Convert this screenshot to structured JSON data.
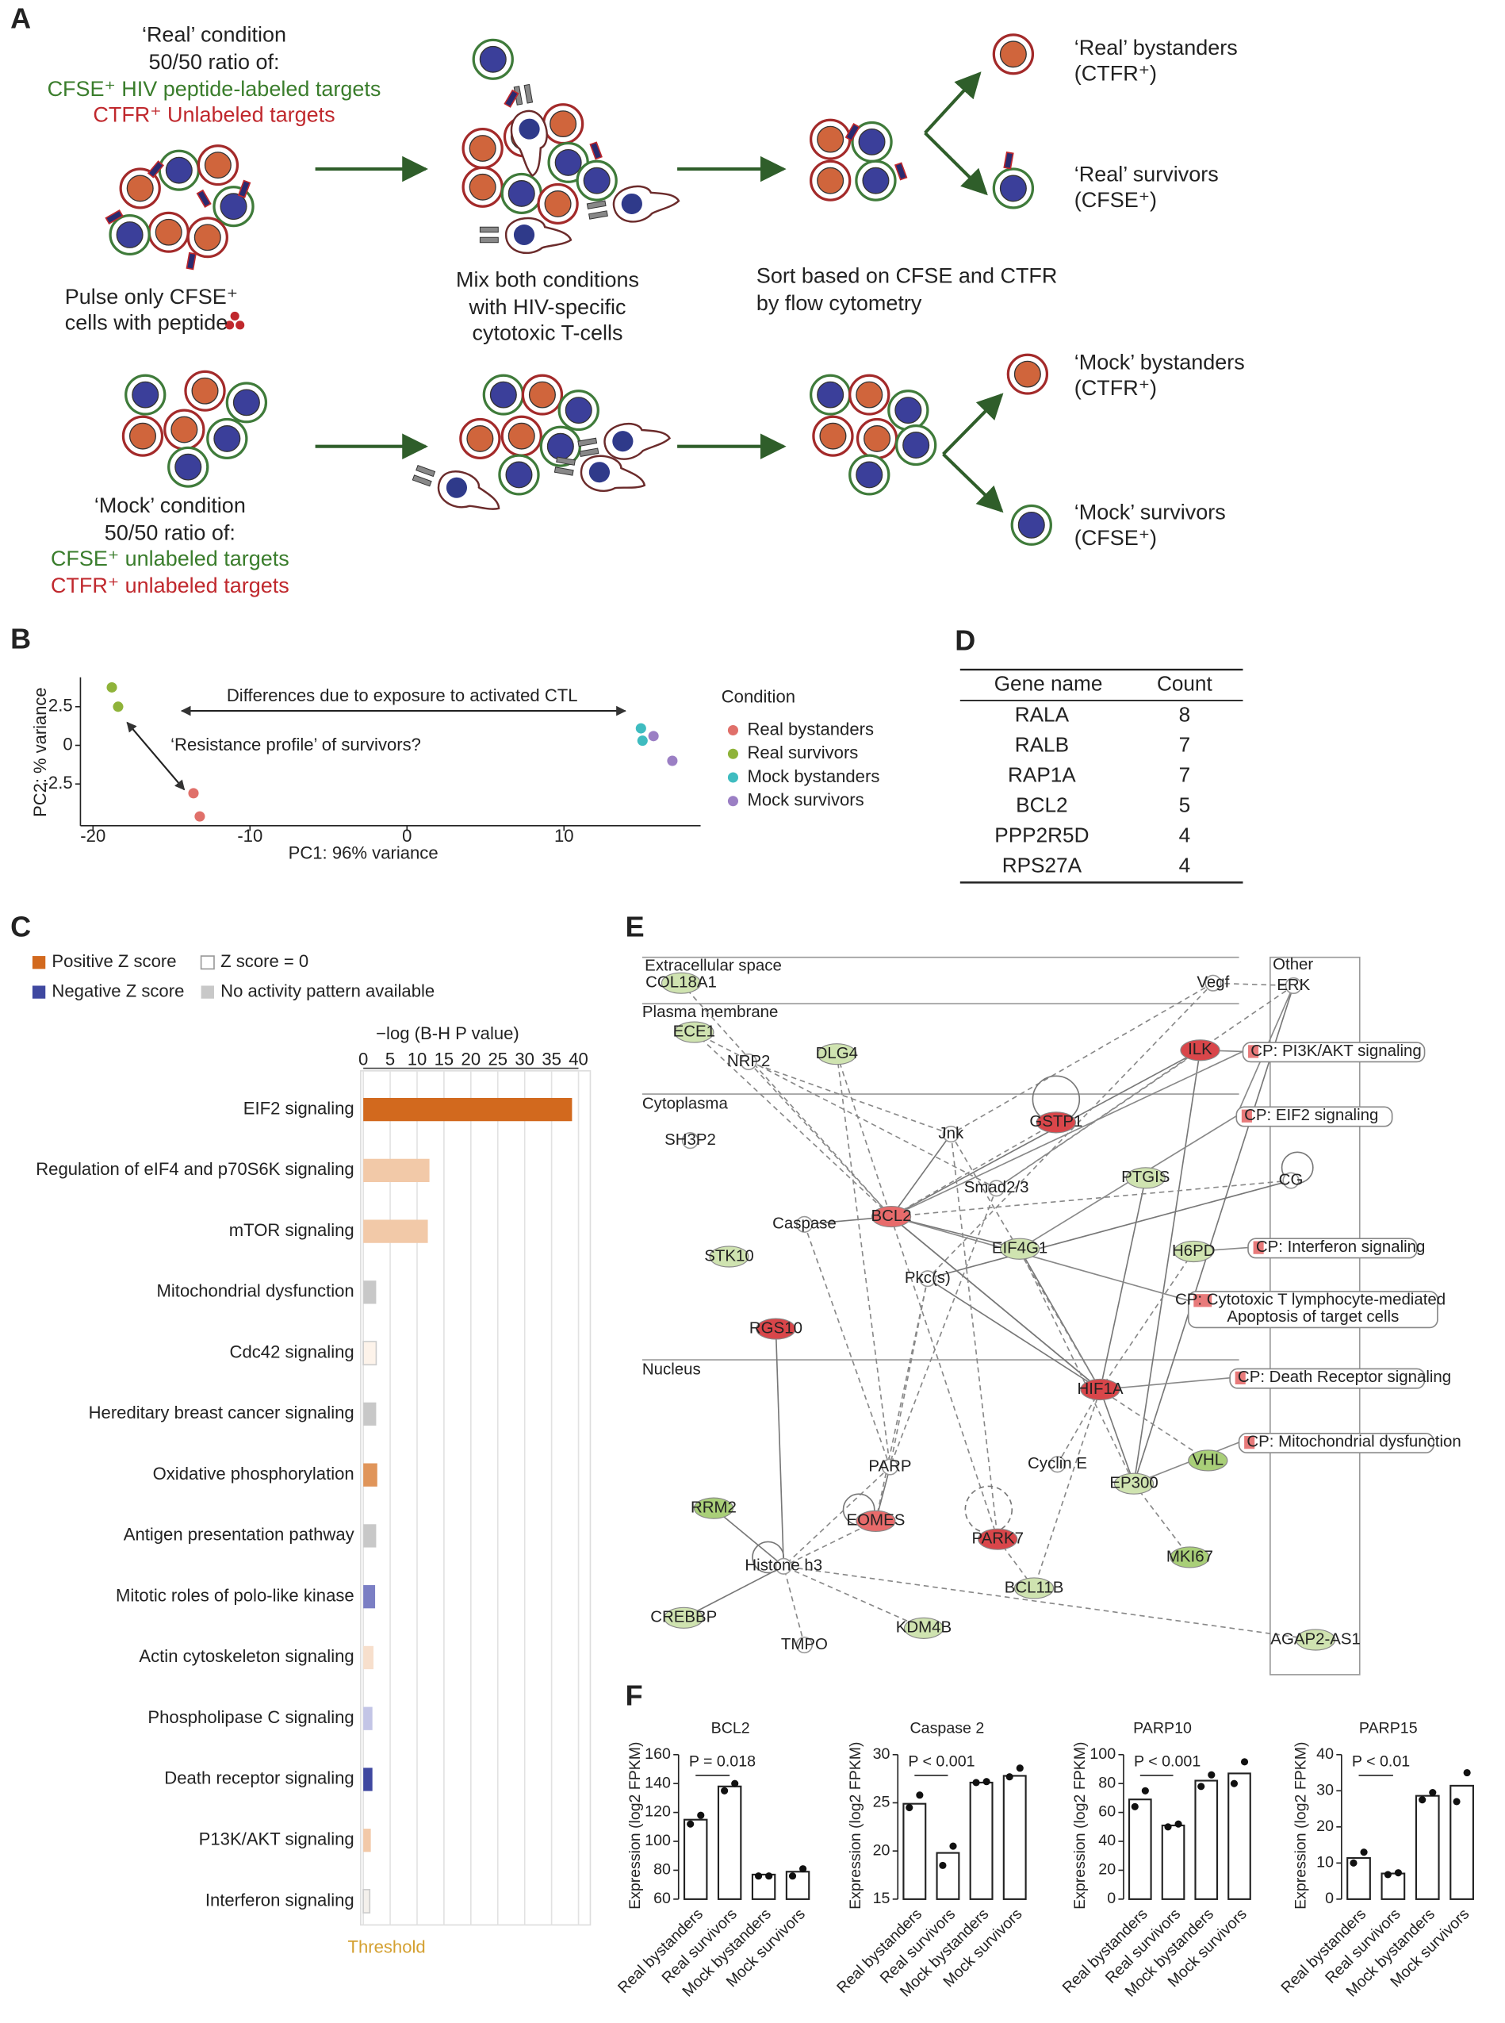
{
  "panel_labels": [
    "A",
    "B",
    "C",
    "D",
    "E",
    "F"
  ],
  "panel_a": {
    "real_condition": [
      "‘Real’ condition",
      "50/50 ratio of:",
      "CFSE⁺ HIV peptide-labeled targets",
      "CTFR⁺ Unlabeled targets"
    ],
    "pulse": [
      "Pulse only CFSE⁺",
      "cells with peptide"
    ],
    "mix": [
      "Mix both conditions",
      "with HIV-specific",
      "cytotoxic T-cells"
    ],
    "sort": [
      "Sort based on CFSE and CTFR",
      "by flow cytometry"
    ],
    "outputs": [
      [
        "‘Real’ bystanders",
        "(CTFR⁺)"
      ],
      [
        "‘Real’ survivors",
        "(CFSE⁺)"
      ],
      [
        "‘Mock’ bystanders",
        "(CTFR⁺)"
      ],
      [
        "‘Mock’ survivors",
        "(CFSE⁺)"
      ]
    ],
    "mock_condition": [
      "‘Mock’ condition",
      "50/50 ratio of:",
      "CFSE⁺ unlabeled targets",
      "CTFR⁺ unlabeled targets"
    ]
  },
  "chart_data": [
    {
      "type": "scatter",
      "xlabel": "PC1: 96% variance",
      "ylabel": "PC2: % variance",
      "xlim": [
        -20.8,
        18.7
      ],
      "ylim": [
        -5.2,
        4.4
      ],
      "xticks": [
        -20,
        -10,
        0,
        10
      ],
      "yticks": [
        2.5,
        0,
        -2.5
      ],
      "legend_title": "Condition",
      "annotations": [
        "Differences due to exposure to activated CTL",
        "‘Resistance profile’ of survivors?"
      ],
      "series": [
        {
          "name": "Real bystanders",
          "color": "#e0706a",
          "x": [
            -13.6,
            -13.2
          ],
          "values": [
            -3.1,
            -4.6
          ]
        },
        {
          "name": "Real survivors",
          "color": "#8fb33a",
          "x": [
            -18.8,
            -18.4
          ],
          "values": [
            3.75,
            2.5
          ]
        },
        {
          "name": "Mock bystanders",
          "color": "#3fbcc0",
          "x": [
            14.9,
            15.0
          ],
          "values": [
            1.1,
            0.3
          ]
        },
        {
          "name": "Mock survivors",
          "color": "#9b7fc4",
          "x": [
            15.7,
            16.9
          ],
          "values": [
            0.6,
            -1.0
          ]
        }
      ]
    },
    {
      "type": "hbar",
      "xlabel": "−log (B-H P value)",
      "xlim": [
        0,
        42.2
      ],
      "xticks": [
        0,
        5,
        10,
        15,
        20,
        25,
        30,
        35,
        40
      ],
      "grid": true,
      "categories": [
        "EIF2 signaling",
        "Regulation of eIF4 and p70S6K signaling",
        "mTOR signaling",
        "Mitochondrial dysfunction",
        "Cdc42 signaling",
        "Hereditary breast cancer signaling",
        "Oxidative phosphorylation",
        "Antigen presentation pathway",
        "Mitotic roles of polo-like kinase",
        "Actin cytoskeleton signaling",
        "Phospholipase C signaling",
        "Death receptor signaling",
        "P13K/AKT signaling",
        "Interferon signaling"
      ],
      "values": [
        38.8,
        12.3,
        12.0,
        2.4,
        2.4,
        2.4,
        2.6,
        2.4,
        2.2,
        1.9,
        1.7,
        1.7,
        1.4,
        1.2
      ],
      "colors": [
        "#d2691e",
        "#f2c9a8",
        "#f2c9a8",
        "#c8c8c8",
        "#fdf3ea",
        "#c8c8c8",
        "#e0955a",
        "#c8c8c8",
        "#7b7fc4",
        "#f7dfcc",
        "#c3c5e6",
        "#3f48a0",
        "#f2c9a8",
        "#f4f0ec"
      ],
      "legend": [
        {
          "name": "Positive Z score",
          "color": "#d2691e"
        },
        {
          "name": "Z score = 0",
          "color": "#ffffff"
        },
        {
          "name": "Negative Z score",
          "color": "#3f48a0"
        },
        {
          "name": "No activity pattern available",
          "color": "#c8c8c8"
        }
      ],
      "threshold_label": "Threshold"
    },
    {
      "type": "bar",
      "title": "BCL2",
      "ylabel": "Expression (log2 FPKM)",
      "ylim": [
        60,
        160
      ],
      "yticks": [
        60,
        80,
        100,
        120,
        140,
        160
      ],
      "categories": [
        "Real bystanders",
        "Real survivors",
        "Mock bystanders",
        "Mock survivors"
      ],
      "values": [
        115,
        138,
        77,
        79
      ],
      "points": [
        [
          112,
          118
        ],
        [
          135,
          140
        ],
        [
          76,
          76
        ],
        [
          76,
          81
        ]
      ],
      "annotation": "P = 0.018"
    },
    {
      "type": "bar",
      "title": "Caspase 2",
      "ylabel": "Expression (log2 FPKM)",
      "ylim": [
        15,
        30
      ],
      "yticks": [
        15,
        20,
        25,
        30
      ],
      "categories": [
        "Real bystanders",
        "Real survivors",
        "Mock bystanders",
        "Mock survivors"
      ],
      "values": [
        24.9,
        19.8,
        27.1,
        27.8
      ],
      "points": [
        [
          24.5,
          25.8
        ],
        [
          18.5,
          20.5
        ],
        [
          27.1,
          27.2
        ],
        [
          27.7,
          28.6
        ]
      ],
      "annotation": "P < 0.001"
    },
    {
      "type": "bar",
      "title": "PARP10",
      "ylabel": "Expression (log2 FPKM)",
      "ylim": [
        0,
        100
      ],
      "yticks": [
        0,
        20,
        40,
        60,
        80,
        100
      ],
      "categories": [
        "Real bystanders",
        "Real survivors",
        "Mock bystanders",
        "Mock survivors"
      ],
      "values": [
        69,
        51,
        82,
        87
      ],
      "points": [
        [
          64,
          75
        ],
        [
          50,
          52
        ],
        [
          78,
          86
        ],
        [
          80,
          95
        ]
      ],
      "annotation": "P < 0.001"
    },
    {
      "type": "bar",
      "title": "PARP15",
      "ylabel": "Expression (log2 FPKM)",
      "ylim": [
        0,
        40
      ],
      "yticks": [
        0,
        10,
        20,
        30,
        40
      ],
      "categories": [
        "Real bystanders",
        "Real survivors",
        "Mock bystanders",
        "Mock survivors"
      ],
      "values": [
        11.4,
        7.1,
        28.6,
        31.4
      ],
      "points": [
        [
          10,
          13
        ],
        [
          6.8,
          7.3
        ],
        [
          27.5,
          29.5
        ],
        [
          27,
          35
        ]
      ],
      "annotation": "P < 0.01"
    }
  ],
  "table": {
    "header": [
      "Gene name",
      "Count"
    ],
    "rows": [
      [
        "RALA",
        8
      ],
      [
        "RALB",
        7
      ],
      [
        "RAP1A",
        7
      ],
      [
        "BCL2",
        5
      ],
      [
        "PPP2R5D",
        4
      ],
      [
        "RPS27A",
        4
      ]
    ]
  },
  "network": {
    "regions": [
      "Extracellular space",
      "Plasma membrane",
      "Cytoplasma",
      "Nucleus"
    ],
    "other": "Other",
    "nodes": [
      {
        "label": "COL18A1",
        "color": "#cfe3b0"
      },
      {
        "label": "ECE1",
        "color": "#cfe3b0"
      },
      {
        "label": "NRP2",
        "color": "#ffffff"
      },
      {
        "label": "DLG4",
        "color": "#cfe3b0"
      },
      {
        "label": "SH3P2",
        "color": "#ffffff"
      },
      {
        "label": "STK10",
        "color": "#cfe3b0"
      },
      {
        "label": "Caspase",
        "color": "#ffffff"
      },
      {
        "label": "BCL2",
        "color": "#e86b6b"
      },
      {
        "label": "Jnk",
        "color": "#ffffff"
      },
      {
        "label": "GSTP1",
        "color": "#d9464a"
      },
      {
        "label": "Smad2/3",
        "color": "#ffffff"
      },
      {
        "label": "PTGIS",
        "color": "#cfe3b0"
      },
      {
        "label": "EIF4G1",
        "color": "#cfe3b0"
      },
      {
        "label": "H6PD",
        "color": "#cfe3b0"
      },
      {
        "label": "Pkc(s)",
        "color": "#ffffff"
      },
      {
        "label": "RGS10",
        "color": "#d9464a"
      },
      {
        "label": "HIF1A",
        "color": "#d9464a"
      },
      {
        "label": "Cyclin E",
        "color": "#ffffff"
      },
      {
        "label": "VHL",
        "color": "#a9cf78"
      },
      {
        "label": "EP300",
        "color": "#cfe3b0"
      },
      {
        "label": "PARP",
        "color": "#ffffff"
      },
      {
        "label": "RRM2",
        "color": "#a9cf78"
      },
      {
        "label": "EOMES",
        "color": "#e86b6b"
      },
      {
        "label": "PARK7",
        "color": "#d9464a"
      },
      {
        "label": "MKI67",
        "color": "#a9cf78"
      },
      {
        "label": "BCL11B",
        "color": "#cfe3b0"
      },
      {
        "label": "Histone h3",
        "color": "#ffffff"
      },
      {
        "label": "CREBBP",
        "color": "#cfe3b0"
      },
      {
        "label": "TMPO",
        "color": "#ffffff"
      },
      {
        "label": "KDM4B",
        "color": "#cfe3b0"
      },
      {
        "label": "AGAP2-AS1",
        "color": "#cfe3b0"
      },
      {
        "label": "Vegf",
        "color": "#ffffff"
      },
      {
        "label": "ERK",
        "color": "#ffffff"
      },
      {
        "label": "ILK",
        "color": "#d9464a"
      },
      {
        "label": "CG",
        "color": "#ffffff"
      }
    ],
    "pathways": [
      [
        "CP: PI3K/AKT signaling"
      ],
      [
        "CP: EIF2 signaling"
      ],
      [
        "CP: Interferon signaling"
      ],
      [
        "CP: Cytotoxic T lymphocyte-mediated",
        "Apoptosis of target cells"
      ],
      [
        "CP: Death Receptor signaling"
      ],
      [
        "CP: Mitochondrial dysfunction"
      ]
    ]
  }
}
